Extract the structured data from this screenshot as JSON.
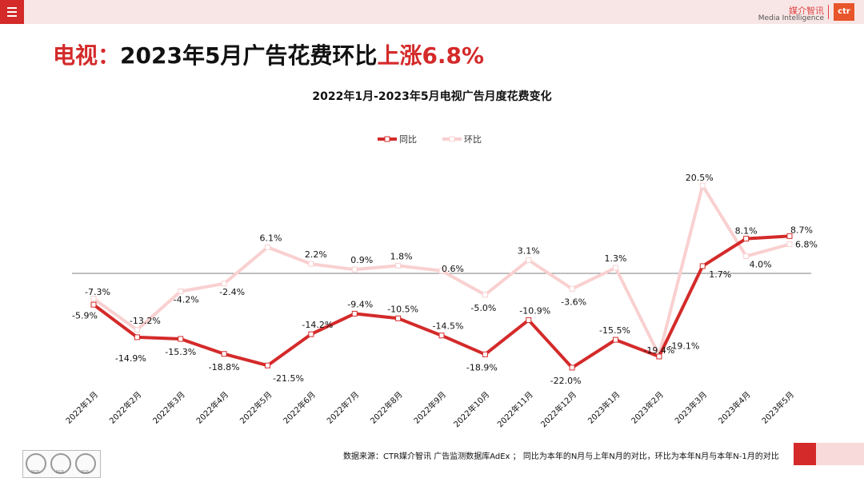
{
  "header": {
    "menu_icon": "hamburger-icon",
    "logo_cn": "媒介智讯",
    "logo_en": "Media Intelligence",
    "logo_mark": "ctr"
  },
  "headline": {
    "part1": "电视：",
    "part2": "2023年5月广告花费环比",
    "part3": "上涨6.8%"
  },
  "colors": {
    "accent": "#d42a2a",
    "yoy_line": "#d42a2a",
    "mom_line": "#f9d0d0",
    "topbar": "#f8e6e6"
  },
  "chart_data": {
    "type": "line",
    "title": "2022年1月-2023年5月电视广告月度花费变化",
    "categories": [
      "2022年1月",
      "2022年2月",
      "2022年3月",
      "2022年4月",
      "2022年5月",
      "2022年6月",
      "2022年7月",
      "2022年8月",
      "2022年9月",
      "2022年10月",
      "2022年11月",
      "2022年12月",
      "2023年1月",
      "2023年2月",
      "2023年3月",
      "2023年4月",
      "2023年5月"
    ],
    "series": [
      {
        "name": "同比",
        "values": [
          -7.3,
          -14.9,
          -15.3,
          -18.8,
          -21.5,
          -14.2,
          -9.4,
          -10.5,
          -14.5,
          -18.9,
          -10.9,
          -22.0,
          -15.5,
          -19.4,
          1.7,
          8.1,
          8.7
        ],
        "labels": [
          "-7.3%",
          "-14.9%",
          "-15.3%",
          "-18.8%",
          "-21.5%",
          "-14.2%",
          "-9.4%",
          "-10.5%",
          "-14.5%",
          "-18.9%",
          "-10.9%",
          "-22.0%",
          "-15.5%",
          "-19.4%",
          "1.7%",
          "8.1%",
          "8.7%"
        ]
      },
      {
        "name": "环比",
        "values": [
          -5.9,
          -13.2,
          -4.2,
          -2.4,
          6.1,
          2.2,
          0.9,
          1.8,
          0.6,
          -5.0,
          3.1,
          -3.6,
          1.3,
          -19.1,
          20.5,
          4.0,
          6.8
        ],
        "labels": [
          "-5.9%",
          "-13.2%",
          "-4.2%",
          "-2.4%",
          "6.1%",
          "2.2%",
          "0.9%",
          "1.8%",
          "0.6%",
          "-5.0%",
          "3.1%",
          "-3.6%",
          "1.3%",
          "-19.1%",
          "20.5%",
          "4.0%",
          "6.8%"
        ]
      }
    ],
    "ylim": [
      -23,
      22
    ],
    "grid": false,
    "legend_position": "top-center"
  },
  "footer": {
    "source": "数据来源：CTR媒介智讯 广告监测数据库AdEx ； 同比为本年的N月与上年N月的对比，环比为本年N月与本年N-1月的对比",
    "cert_label": "SGS"
  }
}
